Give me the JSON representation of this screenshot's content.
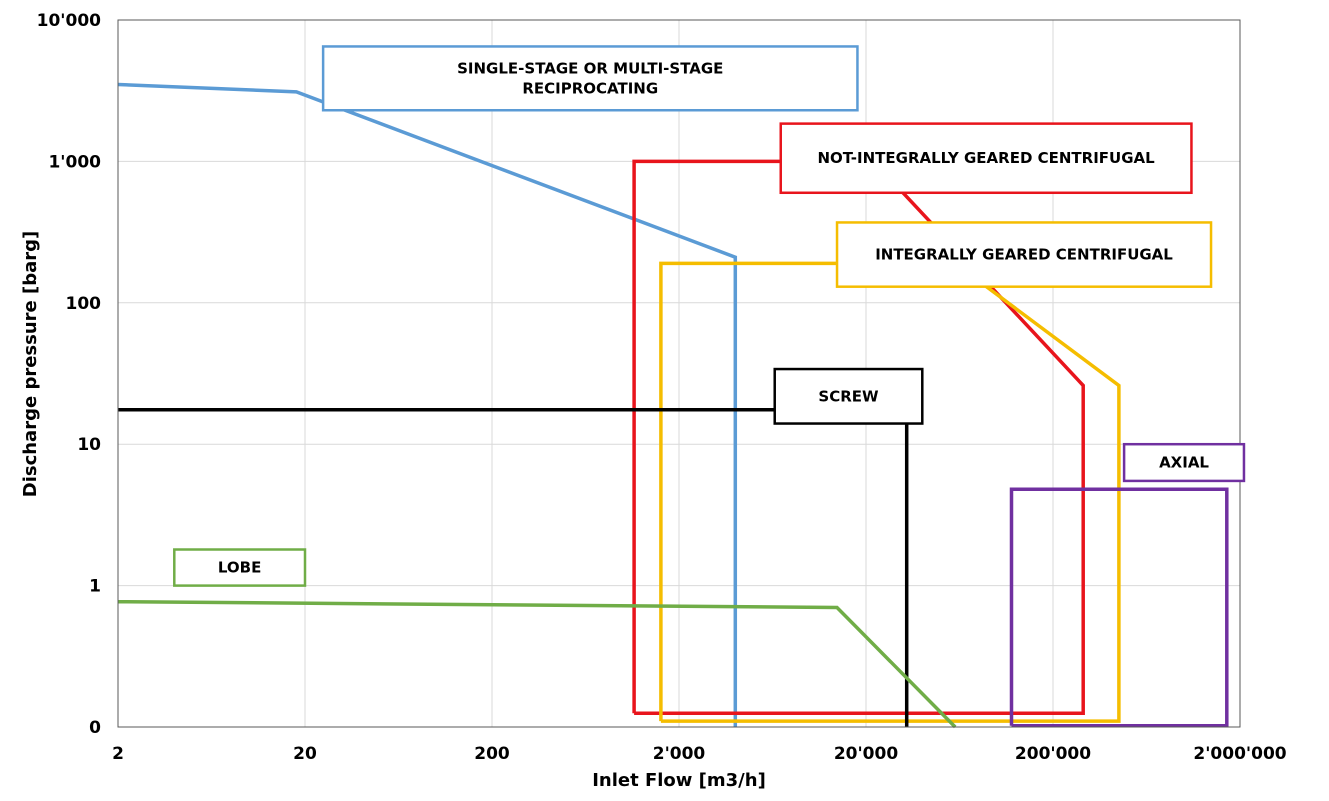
{
  "chart_data": {
    "type": "line",
    "title": "",
    "xlabel": "Inlet Flow [m3/h]",
    "ylabel": "Discharge pressure [barg]",
    "x_scale": "log",
    "y_scale": "log",
    "xlim": [
      2,
      2000000
    ],
    "ylim": [
      0.1,
      10000
    ],
    "grid": true,
    "x_ticks": [
      {
        "value": 2,
        "label": "2"
      },
      {
        "value": 20,
        "label": "20"
      },
      {
        "value": 200,
        "label": "200"
      },
      {
        "value": 2000,
        "label": "2'000"
      },
      {
        "value": 20000,
        "label": "20'000"
      },
      {
        "value": 200000,
        "label": "200'000"
      },
      {
        "value": 2000000,
        "label": "2'000'000"
      }
    ],
    "y_ticks": [
      {
        "value": 0.1,
        "label": "0"
      },
      {
        "value": 1,
        "label": "1"
      },
      {
        "value": 10,
        "label": "10"
      },
      {
        "value": 100,
        "label": "100"
      },
      {
        "value": 1000,
        "label": "1'000"
      },
      {
        "value": 10000,
        "label": "10'000"
      }
    ],
    "series": [
      {
        "key": "reciprocating",
        "name": "SINGLE-STAGE OR MULTI-STAGE RECIPROCATING",
        "name_lines": [
          "SINGLE-STAGE OR MULTI-STAGE",
          "RECIPROCATING"
        ],
        "color": "#5B9BD5",
        "points": [
          [
            2,
            3500
          ],
          [
            18,
            3100
          ],
          [
            4000,
            210
          ],
          [
            4000,
            0.1
          ]
        ],
        "label_box": {
          "x_from": 25,
          "x_to": 18000,
          "y_from": 2300,
          "y_to": 6500
        }
      },
      {
        "key": "not_integrally_geared",
        "name": "NOT-INTEGRALLY GEARED CENTRIFUGAL",
        "name_lines": [
          "NOT-INTEGRALLY GEARED CENTRIFUGAL"
        ],
        "color": "#E8141C",
        "points": [
          [
            1150,
            0.125
          ],
          [
            1150,
            1000
          ],
          [
            22000,
            1000
          ],
          [
            290000,
            26
          ],
          [
            290000,
            0.125
          ],
          [
            1150,
            0.125
          ]
        ],
        "label_box": {
          "x_from": 7000,
          "x_to": 1100000,
          "y_from": 600,
          "y_to": 1850
        }
      },
      {
        "key": "integrally_geared",
        "name": "INTEGRALLY GEARED CENTRIFUGAL",
        "name_lines": [
          "INTEGRALLY GEARED CENTRIFUGAL"
        ],
        "color": "#F5BD00",
        "points": [
          [
            1600,
            0.11
          ],
          [
            1600,
            190
          ],
          [
            60000,
            190
          ],
          [
            450000,
            26
          ],
          [
            450000,
            0.11
          ],
          [
            1600,
            0.11
          ]
        ],
        "label_box": {
          "x_from": 14000,
          "x_to": 1400000,
          "y_from": 130,
          "y_to": 370
        }
      },
      {
        "key": "screw",
        "name": "SCREW",
        "name_lines": [
          "SCREW"
        ],
        "color": "#000000",
        "points": [
          [
            2,
            17.5
          ],
          [
            33000,
            17.5
          ],
          [
            33000,
            0.1
          ]
        ],
        "label_box": {
          "x_from": 6500,
          "x_to": 40000,
          "y_from": 14,
          "y_to": 34
        }
      },
      {
        "key": "axial",
        "name": "AXIAL",
        "name_lines": [
          "AXIAL"
        ],
        "color": "#7030A0",
        "points": [
          [
            120000,
            0.102
          ],
          [
            120000,
            4.8
          ],
          [
            1700000,
            4.8
          ],
          [
            1700000,
            0.102
          ],
          [
            120000,
            0.102
          ]
        ],
        "label_box": {
          "x_from": 480000,
          "x_to": 2100000,
          "y_from": 5.5,
          "y_to": 10
        }
      },
      {
        "key": "lobe",
        "name": "LOBE",
        "name_lines": [
          "LOBE"
        ],
        "color": "#70AD47",
        "points": [
          [
            2,
            0.77
          ],
          [
            14000,
            0.7
          ],
          [
            60000,
            0.1
          ]
        ],
        "label_box": {
          "x_from": 4,
          "x_to": 20,
          "y_from": 1,
          "y_to": 1.8
        }
      }
    ]
  }
}
